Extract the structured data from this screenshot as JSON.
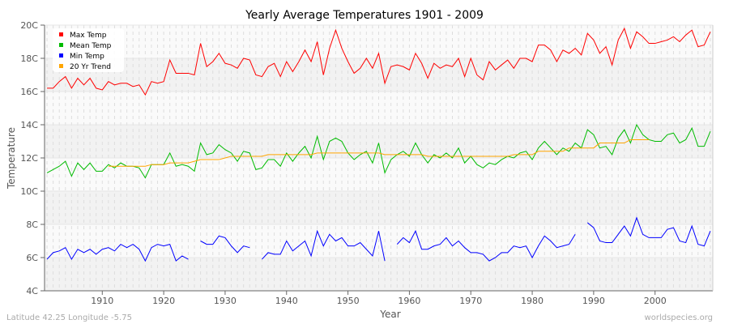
{
  "chart_data": {
    "type": "line",
    "title": "Yearly Average Temperatures 1901 - 2009",
    "xlabel": "Year",
    "ylabel": "Temperature",
    "xlim": [
      1901,
      2009
    ],
    "ylim": [
      4,
      20
    ],
    "yticks": [
      "4C",
      "6C",
      "8C",
      "10C",
      "12C",
      "14C",
      "16C",
      "18C",
      "20C"
    ],
    "xticks": [
      "1910",
      "1920",
      "1930",
      "1940",
      "1950",
      "1960",
      "1970",
      "1980",
      "1990",
      "2000"
    ],
    "legend_position": "top-left",
    "series": [
      {
        "name": "Max Temp",
        "color": "#ff0000",
        "values": [
          16.2,
          16.2,
          16.6,
          16.9,
          16.2,
          16.8,
          16.4,
          16.8,
          16.2,
          16.1,
          16.6,
          16.4,
          16.5,
          16.5,
          16.3,
          16.4,
          15.8,
          16.6,
          16.5,
          16.6,
          17.9,
          17.1,
          17.1,
          17.1,
          17.0,
          18.9,
          17.5,
          17.8,
          18.3,
          17.7,
          17.6,
          17.4,
          18.0,
          17.9,
          17.0,
          16.9,
          17.5,
          17.7,
          16.9,
          17.8,
          17.2,
          17.8,
          18.5,
          17.8,
          19.0,
          17.0,
          18.6,
          19.7,
          18.6,
          17.8,
          17.1,
          17.4,
          18.0,
          17.4,
          18.3,
          16.5,
          17.5,
          17.6,
          17.5,
          17.3,
          18.3,
          17.7,
          16.8,
          17.7,
          17.4,
          17.6,
          17.5,
          18.0,
          16.9,
          18.0,
          17.0,
          16.7,
          17.8,
          17.3,
          17.6,
          17.9,
          17.4,
          18.0,
          18.0,
          17.8,
          18.8,
          18.8,
          18.5,
          17.8,
          18.5,
          18.3,
          18.6,
          18.2,
          19.5,
          19.1,
          18.3,
          18.7,
          17.6,
          19.1,
          19.8,
          18.6,
          19.6,
          19.3,
          18.9,
          18.9,
          19.0,
          19.1,
          19.3,
          19.0,
          19.4,
          19.7,
          18.7,
          18.8,
          19.6
        ]
      },
      {
        "name": "Mean Temp",
        "color": "#00bb00",
        "values": [
          11.1,
          11.3,
          11.5,
          11.8,
          10.9,
          11.7,
          11.3,
          11.7,
          11.2,
          11.2,
          11.6,
          11.4,
          11.7,
          11.5,
          11.5,
          11.4,
          10.8,
          11.6,
          11.6,
          11.6,
          12.3,
          11.5,
          11.6,
          11.5,
          11.2,
          12.9,
          12.2,
          12.3,
          12.8,
          12.5,
          12.3,
          11.8,
          12.4,
          12.3,
          11.3,
          11.4,
          11.9,
          11.9,
          11.5,
          12.3,
          11.8,
          12.3,
          12.7,
          12.0,
          13.3,
          11.9,
          13.0,
          13.2,
          13.0,
          12.3,
          11.9,
          12.2,
          12.4,
          11.7,
          12.9,
          11.1,
          11.9,
          12.2,
          12.4,
          12.1,
          12.9,
          12.2,
          11.7,
          12.2,
          12.0,
          12.3,
          12.0,
          12.6,
          11.7,
          12.1,
          11.6,
          11.4,
          11.7,
          11.6,
          11.9,
          12.1,
          12.0,
          12.3,
          12.4,
          11.9,
          12.6,
          13.0,
          12.6,
          12.2,
          12.6,
          12.4,
          12.9,
          12.6,
          13.7,
          13.4,
          12.6,
          12.7,
          12.2,
          13.2,
          13.7,
          12.9,
          14.0,
          13.4,
          13.1,
          13.0,
          13.0,
          13.4,
          13.5,
          12.9,
          13.1,
          13.8,
          12.7,
          12.7,
          13.6
        ]
      },
      {
        "name": "Min Temp",
        "color": "#0000ff",
        "values": [
          5.9,
          6.3,
          6.4,
          6.6,
          5.9,
          6.5,
          6.3,
          6.5,
          6.2,
          6.5,
          6.6,
          6.4,
          6.8,
          6.6,
          6.8,
          6.5,
          5.8,
          6.6,
          6.8,
          6.7,
          6.8,
          5.8,
          6.1,
          5.9,
          null,
          7.0,
          6.8,
          6.8,
          7.3,
          7.2,
          6.7,
          6.3,
          6.7,
          6.6,
          null,
          5.9,
          6.3,
          6.2,
          6.2,
          7.0,
          6.4,
          6.7,
          7.0,
          6.1,
          7.6,
          6.7,
          7.4,
          7.0,
          7.2,
          6.7,
          6.7,
          6.9,
          6.5,
          6.1,
          7.6,
          5.8,
          null,
          6.8,
          7.2,
          6.9,
          7.6,
          6.5,
          6.5,
          6.7,
          6.8,
          7.2,
          6.7,
          7.0,
          6.6,
          6.3,
          6.3,
          6.2,
          5.8,
          6.0,
          6.3,
          6.3,
          6.7,
          6.6,
          6.7,
          6.0,
          6.7,
          7.3,
          7.0,
          6.6,
          6.7,
          6.8,
          7.4,
          null,
          8.1,
          7.8,
          7.0,
          6.9,
          6.9,
          7.4,
          7.9,
          7.3,
          8.4,
          7.4,
          7.2,
          7.2,
          7.2,
          7.7,
          7.8,
          7.0,
          6.9,
          7.9,
          6.8,
          6.7,
          7.6
        ]
      },
      {
        "name": "20 Yr Trend",
        "color": "#ffa500",
        "values": [
          null,
          null,
          null,
          null,
          null,
          null,
          null,
          null,
          null,
          null,
          11.5,
          11.5,
          11.5,
          11.5,
          11.5,
          11.5,
          11.5,
          11.6,
          11.6,
          11.6,
          11.7,
          11.7,
          11.7,
          11.7,
          11.8,
          11.9,
          11.9,
          11.9,
          11.9,
          12.0,
          12.1,
          12.1,
          12.1,
          12.1,
          12.1,
          12.1,
          12.2,
          12.2,
          12.2,
          12.2,
          12.2,
          12.2,
          12.2,
          12.2,
          12.3,
          12.3,
          12.3,
          12.3,
          12.3,
          12.3,
          12.3,
          12.3,
          12.3,
          12.3,
          12.3,
          12.2,
          12.2,
          12.2,
          12.2,
          12.2,
          12.2,
          12.2,
          12.1,
          12.1,
          12.1,
          12.1,
          12.1,
          12.1,
          12.1,
          12.1,
          12.1,
          12.1,
          12.1,
          12.1,
          12.1,
          12.1,
          12.2,
          12.2,
          12.2,
          12.2,
          12.4,
          12.4,
          12.4,
          12.4,
          12.4,
          12.6,
          12.6,
          12.6,
          12.6,
          12.6,
          12.9,
          12.9,
          12.9,
          12.9,
          12.9,
          13.1,
          13.1,
          13.1,
          13.1,
          null,
          null,
          null,
          null,
          null,
          null,
          null,
          null,
          null,
          null
        ]
      }
    ]
  },
  "footer": {
    "location": "Latitude 42.25 Longitude -5.75",
    "site": "worldspecies.org"
  }
}
